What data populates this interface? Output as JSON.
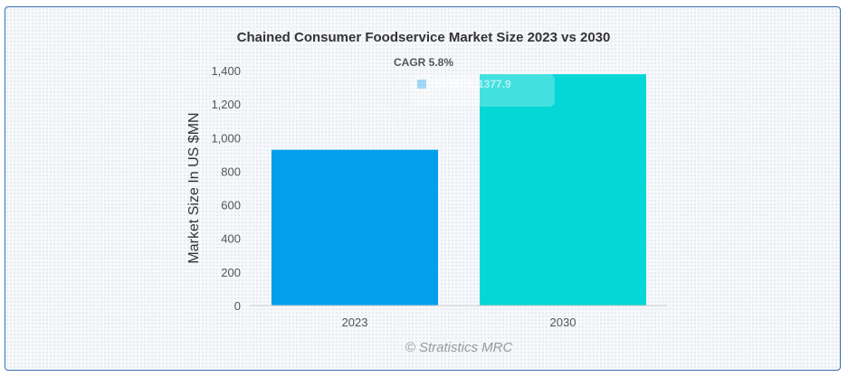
{
  "chart_data": {
    "type": "bar",
    "title": "Chained Consumer Foodservice Market Size 2023 vs 2030",
    "subtitle": "CAGR 5.8%",
    "categories": [
      "2023",
      "2030"
    ],
    "series": [
      {
        "name": "US $MN",
        "values": [
          928,
          1377.9
        ]
      }
    ],
    "legend_label": "US $MN, 1377.9",
    "xlabel": "",
    "ylabel": "Market Size In US $MN",
    "ylim": [
      0,
      1400
    ],
    "yticks": [
      "0",
      "200",
      "400",
      "600",
      "800",
      "1,000",
      "1,200",
      "1,400"
    ],
    "ytick_values": [
      0,
      200,
      400,
      600,
      800,
      1000,
      1200,
      1400
    ],
    "bar_colors": [
      "#039fec",
      "#05d6d6"
    ],
    "grid": false,
    "credit": "© Stratistics MRC"
  }
}
